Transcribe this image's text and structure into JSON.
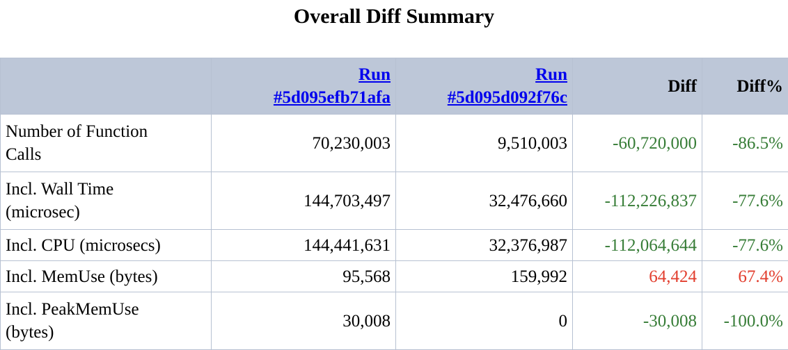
{
  "title": "Overall Diff Summary",
  "colors": {
    "header_bg": "#bdc7d8",
    "table_border": "#b7c1d2",
    "run_link_blue": "#0000ee",
    "decrease_green": "#377d37",
    "increase_red": "#e23e2e"
  },
  "table": {
    "runs": [
      {
        "label": "Run",
        "id": "#5d095efb71afa"
      },
      {
        "label": "Run",
        "id": "#5d095d092f76c"
      }
    ],
    "headers": {
      "diff": "Diff",
      "diff_pct": "Diff%"
    },
    "rows": [
      {
        "metric": "Number of Function Calls",
        "run1": "70,230,003",
        "run2": "9,510,003",
        "diff": "-60,720,000",
        "diff_pct": "-86.5%",
        "trend": "decrease"
      },
      {
        "metric": "Incl. Wall Time (microsec)",
        "run1": "144,703,497",
        "run2": "32,476,660",
        "diff": "-112,226,837",
        "diff_pct": "-77.6%",
        "trend": "decrease"
      },
      {
        "metric": "Incl. CPU (microsecs)",
        "run1": "144,441,631",
        "run2": "32,376,987",
        "diff": "-112,064,644",
        "diff_pct": "-77.6%",
        "trend": "decrease"
      },
      {
        "metric": "Incl. MemUse (bytes)",
        "run1": "95,568",
        "run2": "159,992",
        "diff": "64,424",
        "diff_pct": "67.4%",
        "trend": "increase"
      },
      {
        "metric": "Incl. PeakMemUse (bytes)",
        "run1": "30,008",
        "run2": "0",
        "diff": "-30,008",
        "diff_pct": "-100.0%",
        "trend": "decrease"
      }
    ]
  }
}
